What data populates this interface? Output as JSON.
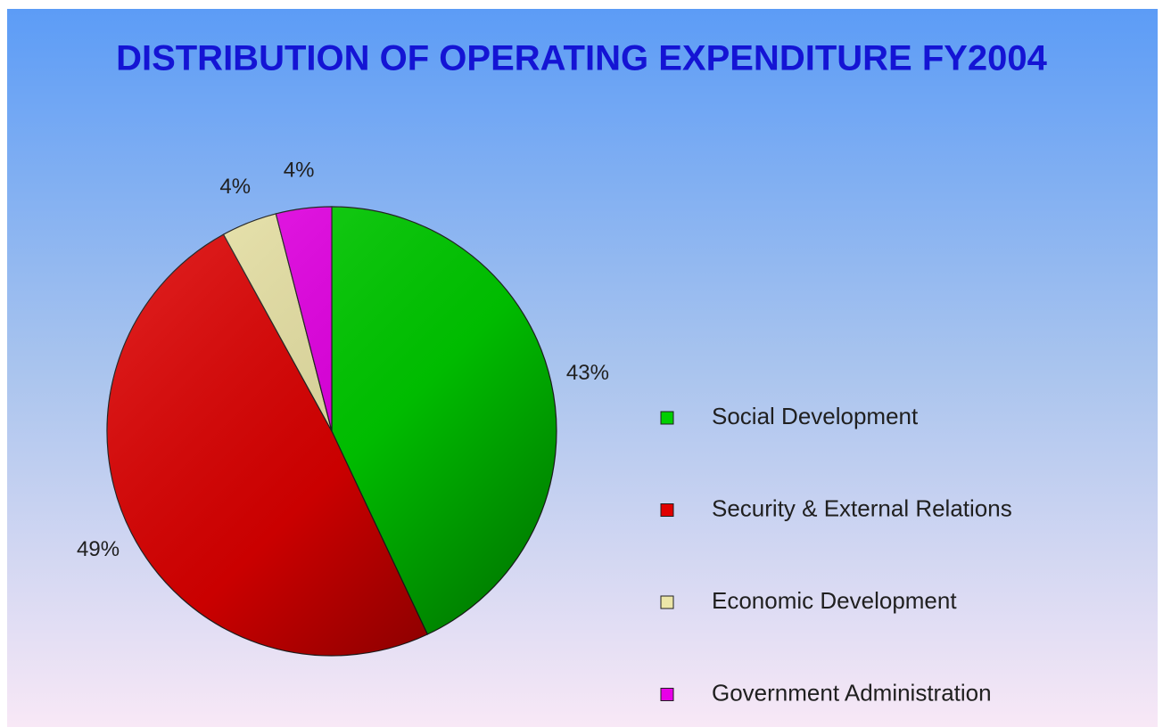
{
  "chart_data": {
    "type": "pie",
    "title": "DISTRIBUTION OF OPERATING EXPENDITURE FY2004",
    "categories": [
      "Social Development",
      "Security & External Relations",
      "Economic Development",
      "Government Administration"
    ],
    "values": [
      43,
      49,
      4,
      4
    ],
    "value_labels": [
      "43%",
      "49%",
      "4%",
      "4%"
    ],
    "colors": [
      "#00d000",
      "#e00000",
      "#ece6a8",
      "#e800e8"
    ],
    "legend": "right"
  }
}
